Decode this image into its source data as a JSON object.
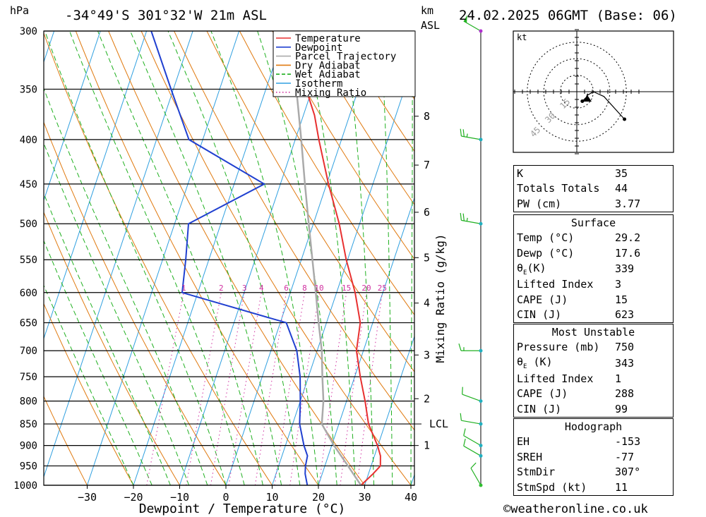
{
  "header": {
    "location": "-34°49'S 301°32'W 21m ASL",
    "datetime": "24.02.2025 06GMT (Base: 06)",
    "hpa_label": "hPa",
    "km_label": "km",
    "asl_label": "ASL",
    "credit": "©weatheronline.co.uk"
  },
  "chart_data": {
    "type": "skew-t",
    "xlabel": "Dewpoint / Temperature (°C)",
    "y2label": "Mixing Ratio (g/kg)",
    "pressure_ticks": [
      300,
      350,
      400,
      450,
      500,
      550,
      600,
      650,
      700,
      750,
      800,
      850,
      900,
      950,
      1000
    ],
    "temp_ticks": [
      -30,
      -20,
      -10,
      0,
      10,
      20,
      30,
      40
    ],
    "xlim": [
      -40,
      40
    ],
    "ylim": [
      1000,
      300
    ],
    "km_ticks": [
      {
        "label": "8",
        "p": 376
      },
      {
        "label": "7",
        "p": 428
      },
      {
        "label": "6",
        "p": 485
      },
      {
        "label": "5",
        "p": 547
      },
      {
        "label": "4",
        "p": 617
      },
      {
        "label": "3",
        "p": 708
      },
      {
        "label": "2",
        "p": 795
      },
      {
        "label": "1",
        "p": 900
      }
    ],
    "lcl": {
      "label": "LCL",
      "p": 850
    },
    "mixing_ratios": [
      "1",
      "2",
      "3",
      "4",
      "6",
      "8",
      "10",
      "15",
      "20",
      "25"
    ],
    "legend": [
      "Temperature",
      "Dewpoint",
      "Parcel Trajectory",
      "Dry Adiabat",
      "Wet Adiabat",
      "Isotherm",
      "Mixing Ratio"
    ],
    "colors": {
      "temperature": "#e83030",
      "dewpoint": "#2040d0",
      "parcel": "#aaaaaa",
      "dry_adiabat": "#e07a10",
      "wet_adiabat": "#20b020",
      "isotherm": "#30a0e0",
      "mixing_ratio": "#d030a0"
    },
    "series": [
      {
        "name": "Temperature",
        "points": [
          [
            1000,
            29.2
          ],
          [
            970,
            31.0
          ],
          [
            950,
            32.0
          ],
          [
            925,
            31.3
          ],
          [
            900,
            29.9
          ],
          [
            850,
            26.4
          ],
          [
            800,
            24.0
          ],
          [
            750,
            21.2
          ],
          [
            700,
            18.5
          ],
          [
            650,
            17.3
          ],
          [
            600,
            14.0
          ],
          [
            550,
            9.7
          ],
          [
            500,
            5.6
          ],
          [
            450,
            0.4
          ],
          [
            400,
            -4.9
          ],
          [
            375,
            -7.6
          ],
          [
            350,
            -11.3
          ],
          [
            300,
            -18.5
          ]
        ]
      },
      {
        "name": "Dewpoint",
        "points": [
          [
            1000,
            17.6
          ],
          [
            970,
            16.3
          ],
          [
            950,
            15.8
          ],
          [
            925,
            15.5
          ],
          [
            900,
            14.0
          ],
          [
            850,
            11.5
          ],
          [
            800,
            10.0
          ],
          [
            750,
            8.2
          ],
          [
            700,
            5.6
          ],
          [
            650,
            1.3
          ],
          [
            600,
            -23.4
          ],
          [
            550,
            -25.0
          ],
          [
            500,
            -27.0
          ],
          [
            450,
            -13.5
          ],
          [
            400,
            -33.0
          ],
          [
            350,
            -40.5
          ],
          [
            300,
            -49.0
          ]
        ]
      },
      {
        "name": "Parcel Trajectory",
        "points": [
          [
            1000,
            29.2
          ],
          [
            950,
            25.0
          ],
          [
            900,
            20.5
          ],
          [
            850,
            16.3
          ],
          [
            800,
            15.0
          ],
          [
            750,
            13.0
          ],
          [
            700,
            11.0
          ],
          [
            650,
            8.3
          ],
          [
            600,
            5.5
          ],
          [
            550,
            2.4
          ],
          [
            500,
            -1.0
          ],
          [
            450,
            -4.7
          ],
          [
            400,
            -8.7
          ],
          [
            350,
            -13.4
          ],
          [
            300,
            -18.5
          ]
        ]
      }
    ],
    "winds": [
      {
        "p": 300,
        "dir": 300,
        "spd": 50
      },
      {
        "p": 400,
        "dir": 280,
        "spd": 25
      },
      {
        "p": 500,
        "dir": 280,
        "spd": 25
      },
      {
        "p": 700,
        "dir": 270,
        "spd": 15
      },
      {
        "p": 800,
        "dir": 290,
        "spd": 10
      },
      {
        "p": 850,
        "dir": 280,
        "spd": 10
      },
      {
        "p": 900,
        "dir": 300,
        "spd": 10
      },
      {
        "p": 925,
        "dir": 300,
        "spd": 10
      },
      {
        "p": 1000,
        "dir": 330,
        "spd": 10
      }
    ],
    "hodograph": {
      "unit": "kt",
      "ring_labels": [
        "15",
        "30",
        "45"
      ]
    }
  },
  "indices": {
    "K": "35",
    "totals_totals": "44",
    "pw": "3.77"
  },
  "labels": {
    "k": "K",
    "totals_totals": "Totals Totals",
    "pw": "PW (cm)",
    "surface": "Surface",
    "temp": "Temp (°C)",
    "dewp": "Dewp (°C)",
    "theta_e_sym": "θ",
    "theta_e_sub": "E",
    "theta_e_unit_surf": "(K)",
    "theta_e_unit_mu": " (K)",
    "lifted_index": "Lifted Index",
    "cape": "CAPE (J)",
    "cin": "CIN (J)",
    "most_unstable": "Most Unstable",
    "pressure": "Pressure (mb)",
    "hodograph": "Hodograph",
    "eh": "EH",
    "sreh": "SREH",
    "stmdir": "StmDir",
    "stmspd": "StmSpd (kt)"
  },
  "surface": {
    "temp": "29.2",
    "dewp": "17.6",
    "theta_e": "339",
    "lifted_index": "3",
    "cape": "15",
    "cin": "623"
  },
  "most_unstable": {
    "pressure": "750",
    "theta_e": "343",
    "lifted_index": "1",
    "cape": "288",
    "cin": "99"
  },
  "hodograph_stats": {
    "eh": "-153",
    "sreh": "-77",
    "stmdir": "307°",
    "stmspd": "11"
  }
}
